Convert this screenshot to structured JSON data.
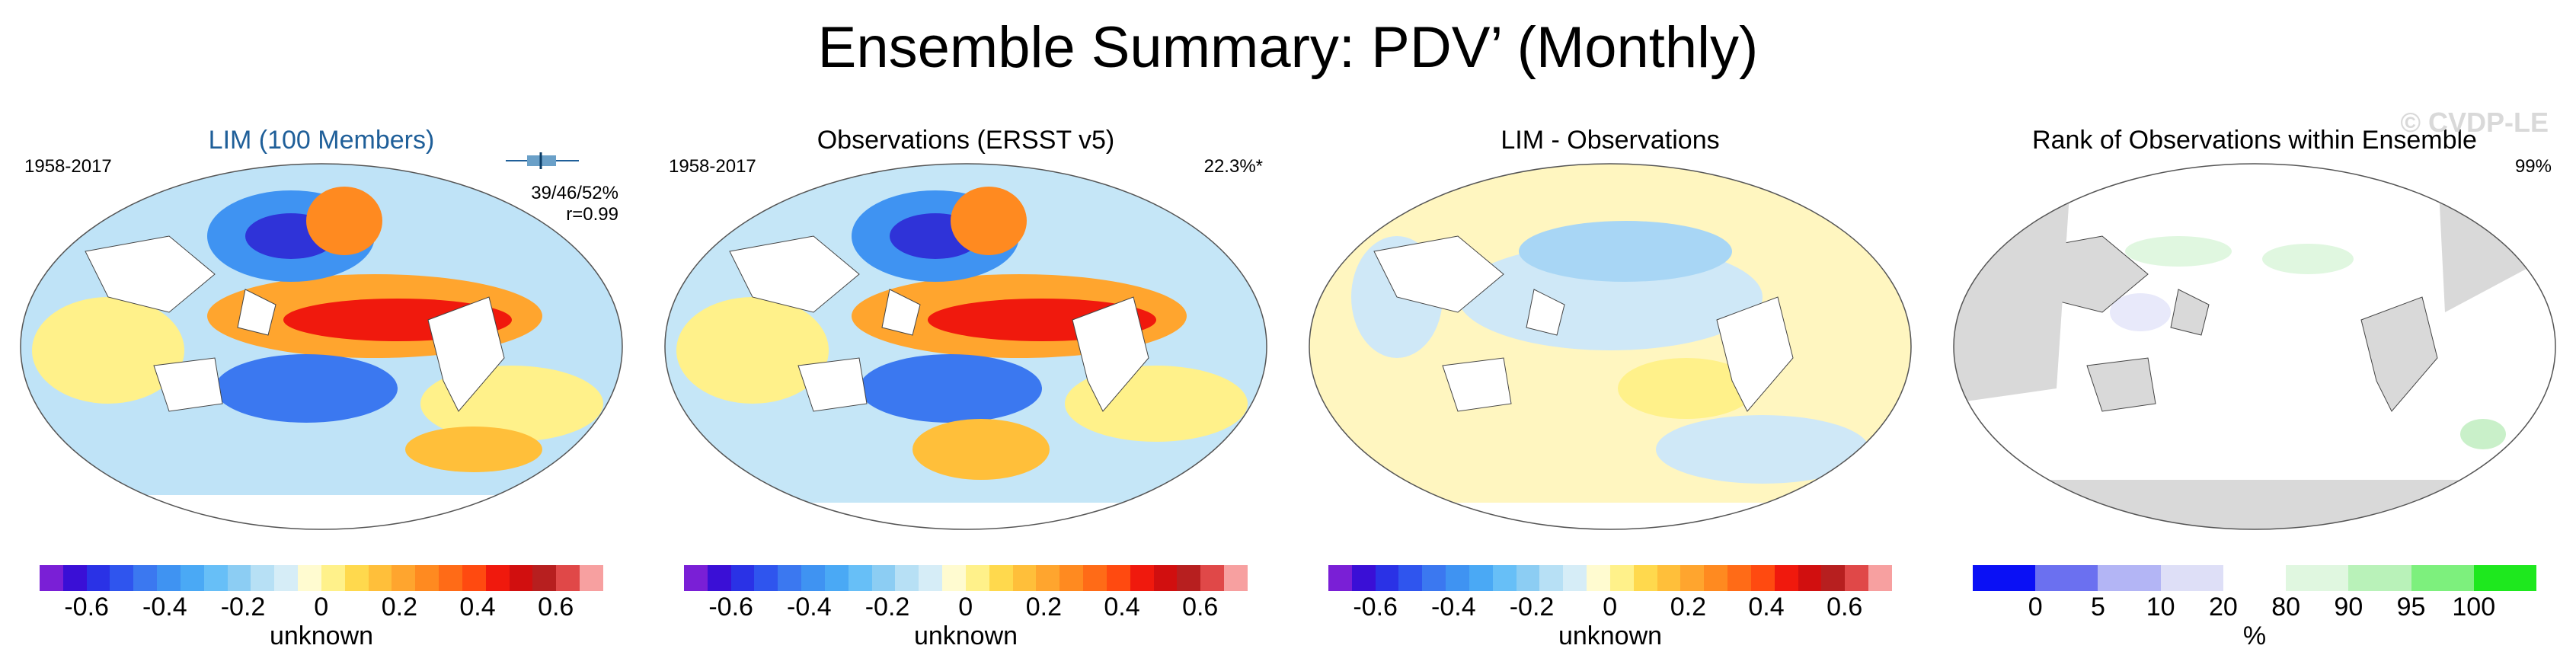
{
  "title": "Ensemble Summary: PDV’ (Monthly)",
  "watermark": "© CVDP-LE",
  "panels": [
    {
      "title": "LIM (100 Members)",
      "period": "1958-2017",
      "stats": [
        "39/46/52%",
        "r=0.99"
      ],
      "colorbar": {
        "type": "diverging",
        "ticks": [
          "-0.6",
          "-0.4",
          "-0.2",
          "0",
          "0.2",
          "0.4",
          "0.6"
        ],
        "unit": "unknown"
      }
    },
    {
      "title": "Observations (ERSST v5)",
      "period": "1958-2017",
      "stats": [
        "22.3%*"
      ],
      "colorbar": {
        "type": "diverging",
        "ticks": [
          "-0.6",
          "-0.4",
          "-0.2",
          "0",
          "0.2",
          "0.4",
          "0.6"
        ],
        "unit": "unknown"
      }
    },
    {
      "title": "LIM - Observations",
      "period": "",
      "stats": [],
      "colorbar": {
        "type": "diverging",
        "ticks": [
          "-0.6",
          "-0.4",
          "-0.2",
          "0",
          "0.2",
          "0.4",
          "0.6"
        ],
        "unit": "unknown"
      }
    },
    {
      "title": "Rank of Observations within Ensemble",
      "period": "",
      "stats": [
        "99%"
      ],
      "colorbar": {
        "type": "rank",
        "ticks": [
          "0",
          "5",
          "10",
          "20",
          "80",
          "90",
          "95",
          "100"
        ],
        "unit": "%"
      }
    }
  ],
  "colors": {
    "diverging": [
      "#7a1fd6",
      "#3a0fd6",
      "#2a32e6",
      "#2f55ee",
      "#3b78f0",
      "#3f93f2",
      "#4aa9f5",
      "#67bff7",
      "#8ccdf3",
      "#b7e0f5",
      "#d6edf7",
      "#fffbd0",
      "#fff18a",
      "#ffd94d",
      "#ffbf3a",
      "#ffa52e",
      "#ff8a20",
      "#ff6b17",
      "#ff4a10",
      "#f0190d",
      "#d10f0f",
      "#b71f1f",
      "#e04848",
      "#f7a0a0"
    ],
    "rank": [
      "#0a10f5",
      "#6b70f0",
      "#b3b5f5",
      "#dedff7",
      "#ffffff",
      "#e0f7e0",
      "#b9f2b9",
      "#7df07d",
      "#1ee81e"
    ],
    "land_rank": "#d9d9d9"
  }
}
